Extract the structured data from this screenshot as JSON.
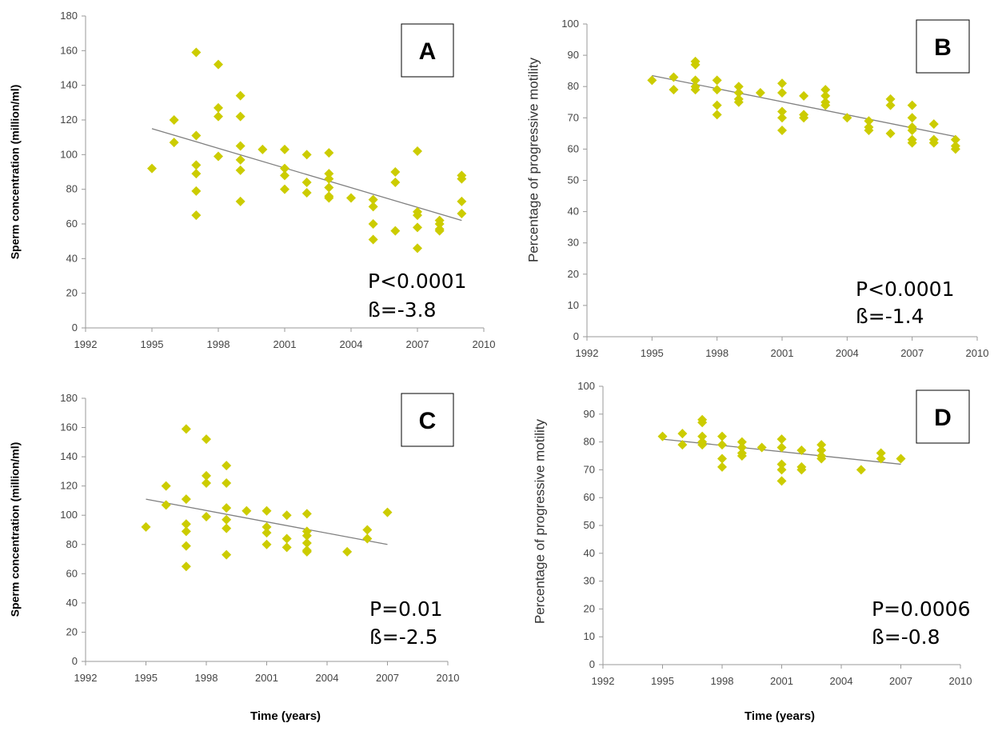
{
  "colors": {
    "point": "#cccc00",
    "trend": "#808080",
    "axis": "#9a9a9a"
  },
  "x_axis_title": "Time (years)",
  "chart_data": [
    {
      "panel": "A",
      "type": "scatter",
      "ylabel": "Sperm concentration (million/ml)",
      "xlim": [
        1992,
        2010
      ],
      "xticks": [
        1992,
        1995,
        1998,
        2001,
        2004,
        2007,
        2010
      ],
      "ylim": [
        0,
        180
      ],
      "yticks": [
        0,
        20,
        40,
        60,
        80,
        100,
        120,
        140,
        160,
        180
      ],
      "stats": [
        "P<0.0001",
        "ß=-3.8"
      ],
      "trend": {
        "x": [
          1995,
          2009
        ],
        "y": [
          115,
          62
        ]
      },
      "points": [
        [
          1995,
          92
        ],
        [
          1996,
          120
        ],
        [
          1996,
          107
        ],
        [
          1997,
          159
        ],
        [
          1997,
          111
        ],
        [
          1997,
          94
        ],
        [
          1997,
          89
        ],
        [
          1997,
          79
        ],
        [
          1997,
          65
        ],
        [
          1998,
          152
        ],
        [
          1998,
          127
        ],
        [
          1998,
          122
        ],
        [
          1998,
          99
        ],
        [
          1999,
          134
        ],
        [
          1999,
          122
        ],
        [
          1999,
          105
        ],
        [
          1999,
          97
        ],
        [
          1999,
          91
        ],
        [
          1999,
          73
        ],
        [
          2000,
          103
        ],
        [
          2001,
          103
        ],
        [
          2001,
          92
        ],
        [
          2001,
          88
        ],
        [
          2001,
          80
        ],
        [
          2002,
          100
        ],
        [
          2002,
          84
        ],
        [
          2002,
          78
        ],
        [
          2003,
          101
        ],
        [
          2003,
          89
        ],
        [
          2003,
          86
        ],
        [
          2003,
          81
        ],
        [
          2003,
          76
        ],
        [
          2003,
          75
        ],
        [
          2004,
          75
        ],
        [
          2005,
          74
        ],
        [
          2005,
          70
        ],
        [
          2005,
          60
        ],
        [
          2005,
          51
        ],
        [
          2006,
          90
        ],
        [
          2006,
          84
        ],
        [
          2006,
          56
        ],
        [
          2007,
          102
        ],
        [
          2007,
          67
        ],
        [
          2007,
          65
        ],
        [
          2007,
          58
        ],
        [
          2007,
          46
        ],
        [
          2008,
          62
        ],
        [
          2008,
          60
        ],
        [
          2008,
          57
        ],
        [
          2008,
          56
        ],
        [
          2009,
          88
        ],
        [
          2009,
          86
        ],
        [
          2009,
          73
        ],
        [
          2009,
          66
        ]
      ]
    },
    {
      "panel": "B",
      "type": "scatter",
      "ylabel": "Percentage of progressive motility",
      "xlim": [
        1992,
        2010
      ],
      "xticks": [
        1992,
        1995,
        1998,
        2001,
        2004,
        2007,
        2010
      ],
      "ylim": [
        0,
        100
      ],
      "yticks": [
        0,
        10,
        20,
        30,
        40,
        50,
        60,
        70,
        80,
        90,
        100
      ],
      "stats": [
        "P<0.0001",
        "ß=-1.4"
      ],
      "trend": {
        "x": [
          1995,
          2009
        ],
        "y": [
          83.5,
          64
        ]
      },
      "points": [
        [
          1995,
          82
        ],
        [
          1996,
          83
        ],
        [
          1996,
          79
        ],
        [
          1997,
          88
        ],
        [
          1997,
          87
        ],
        [
          1997,
          82
        ],
        [
          1997,
          80
        ],
        [
          1997,
          79
        ],
        [
          1998,
          82
        ],
        [
          1998,
          79
        ],
        [
          1998,
          74
        ],
        [
          1998,
          71
        ],
        [
          1999,
          80
        ],
        [
          1999,
          78
        ],
        [
          1999,
          76
        ],
        [
          1999,
          75
        ],
        [
          2000,
          78
        ],
        [
          2001,
          81
        ],
        [
          2001,
          78
        ],
        [
          2001,
          72
        ],
        [
          2001,
          70
        ],
        [
          2001,
          66
        ],
        [
          2002,
          77
        ],
        [
          2002,
          71
        ],
        [
          2002,
          70
        ],
        [
          2003,
          79
        ],
        [
          2003,
          77
        ],
        [
          2003,
          75
        ],
        [
          2003,
          74
        ],
        [
          2004,
          70
        ],
        [
          2005,
          69
        ],
        [
          2005,
          67
        ],
        [
          2005,
          66
        ],
        [
          2006,
          76
        ],
        [
          2006,
          74
        ],
        [
          2006,
          65
        ],
        [
          2007,
          74
        ],
        [
          2007,
          70
        ],
        [
          2007,
          67
        ],
        [
          2007,
          66
        ],
        [
          2007,
          63
        ],
        [
          2007,
          62
        ],
        [
          2008,
          68
        ],
        [
          2008,
          63
        ],
        [
          2008,
          62
        ],
        [
          2009,
          63
        ],
        [
          2009,
          61
        ],
        [
          2009,
          60
        ]
      ]
    },
    {
      "panel": "C",
      "type": "scatter",
      "ylabel": "Sperm concentration (million/ml)",
      "xlim": [
        1992,
        2010
      ],
      "xticks": [
        1992,
        1995,
        1998,
        2001,
        2004,
        2007,
        2010
      ],
      "ylim": [
        0,
        180
      ],
      "yticks": [
        0,
        20,
        40,
        60,
        80,
        100,
        120,
        140,
        160,
        180
      ],
      "stats": [
        "P=0.01",
        "ß=-2.5"
      ],
      "trend": {
        "x": [
          1995,
          2007
        ],
        "y": [
          111,
          80
        ]
      },
      "points": [
        [
          1995,
          92
        ],
        [
          1996,
          120
        ],
        [
          1996,
          107
        ],
        [
          1997,
          159
        ],
        [
          1997,
          111
        ],
        [
          1997,
          94
        ],
        [
          1997,
          89
        ],
        [
          1997,
          79
        ],
        [
          1997,
          65
        ],
        [
          1998,
          152
        ],
        [
          1998,
          127
        ],
        [
          1998,
          122
        ],
        [
          1998,
          99
        ],
        [
          1999,
          134
        ],
        [
          1999,
          122
        ],
        [
          1999,
          105
        ],
        [
          1999,
          97
        ],
        [
          1999,
          91
        ],
        [
          1999,
          73
        ],
        [
          2000,
          103
        ],
        [
          2001,
          103
        ],
        [
          2001,
          92
        ],
        [
          2001,
          88
        ],
        [
          2001,
          80
        ],
        [
          2002,
          100
        ],
        [
          2002,
          84
        ],
        [
          2002,
          78
        ],
        [
          2003,
          101
        ],
        [
          2003,
          89
        ],
        [
          2003,
          86
        ],
        [
          2003,
          81
        ],
        [
          2003,
          76
        ],
        [
          2003,
          75
        ],
        [
          2005,
          75
        ],
        [
          2006,
          90
        ],
        [
          2006,
          84
        ],
        [
          2007,
          102
        ]
      ]
    },
    {
      "panel": "D",
      "type": "scatter",
      "ylabel": "Percentage of progressive motility",
      "xlim": [
        1992,
        2010
      ],
      "xticks": [
        1992,
        1995,
        1998,
        2001,
        2004,
        2007,
        2010
      ],
      "ylim": [
        0,
        100
      ],
      "yticks": [
        0,
        10,
        20,
        30,
        40,
        50,
        60,
        70,
        80,
        90,
        100
      ],
      "stats": [
        "P=0.0006",
        "ß=-0.8"
      ],
      "trend": {
        "x": [
          1995,
          2007
        ],
        "y": [
          81,
          72
        ]
      },
      "points": [
        [
          1995,
          82
        ],
        [
          1996,
          83
        ],
        [
          1996,
          79
        ],
        [
          1997,
          88
        ],
        [
          1997,
          87
        ],
        [
          1997,
          82
        ],
        [
          1997,
          80
        ],
        [
          1997,
          79
        ],
        [
          1998,
          82
        ],
        [
          1998,
          79
        ],
        [
          1998,
          74
        ],
        [
          1998,
          71
        ],
        [
          1999,
          80
        ],
        [
          1999,
          78
        ],
        [
          1999,
          76
        ],
        [
          1999,
          75
        ],
        [
          2000,
          78
        ],
        [
          2001,
          81
        ],
        [
          2001,
          78
        ],
        [
          2001,
          72
        ],
        [
          2001,
          70
        ],
        [
          2001,
          66
        ],
        [
          2002,
          77
        ],
        [
          2002,
          71
        ],
        [
          2002,
          70
        ],
        [
          2003,
          79
        ],
        [
          2003,
          77
        ],
        [
          2003,
          75
        ],
        [
          2003,
          74
        ],
        [
          2005,
          70
        ],
        [
          2006,
          76
        ],
        [
          2006,
          74
        ],
        [
          2007,
          74
        ]
      ]
    }
  ]
}
